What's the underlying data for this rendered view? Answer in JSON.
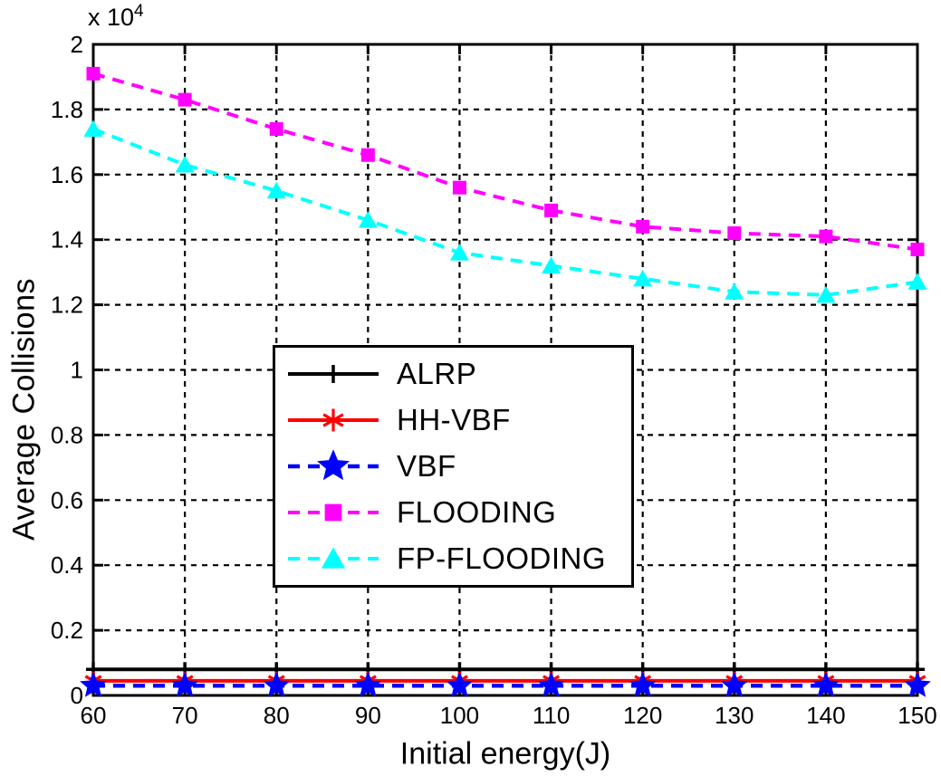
{
  "figure": {
    "background": "#ffffff",
    "text_color": "#000000"
  },
  "chart_data": {
    "type": "line",
    "title": "",
    "xlabel": "Initial energy(J)",
    "ylabel": "Average Collisions",
    "y_multiplier_base": "x 10",
    "y_multiplier_exp": "4",
    "xlim": [
      60,
      150
    ],
    "ylim": [
      0,
      20000
    ],
    "x_ticks": [
      60,
      70,
      80,
      90,
      100,
      110,
      120,
      130,
      140,
      150
    ],
    "x_tick_labels": [
      "60",
      "70",
      "80",
      "90",
      "100",
      "110",
      "120",
      "130",
      "140",
      "150"
    ],
    "y_ticks": [
      0,
      2000,
      4000,
      6000,
      8000,
      10000,
      12000,
      14000,
      16000,
      18000,
      20000
    ],
    "y_tick_labels": [
      "0",
      "0.2",
      "0.4",
      "0.6",
      "0.8",
      "1",
      "1.2",
      "1.4",
      "1.6",
      "1.8",
      "2"
    ],
    "grid": "dashed",
    "grid_color": "#000000",
    "axis_color": "#000000",
    "legend_position": "inside upper-left-center",
    "x": [
      60,
      70,
      80,
      90,
      100,
      110,
      120,
      130,
      140,
      150
    ],
    "series": [
      {
        "name": "ALRP",
        "color": "#000000",
        "line": "solid",
        "marker": "plus",
        "marker_size": 8,
        "line_width": 4,
        "values": [
          800,
          800,
          800,
          800,
          800,
          800,
          800,
          800,
          800,
          800
        ]
      },
      {
        "name": "HH-VBF",
        "color": "#ff0000",
        "line": "solid",
        "marker": "asterisk",
        "marker_size": 10,
        "line_width": 4,
        "values": [
          450,
          450,
          450,
          450,
          450,
          450,
          450,
          450,
          450,
          450
        ]
      },
      {
        "name": "VBF",
        "color": "#0000ff",
        "line": "dashed",
        "marker": "star",
        "marker_size": 13,
        "line_width": 4.5,
        "values": [
          300,
          300,
          300,
          300,
          300,
          300,
          300,
          300,
          300,
          300
        ]
      },
      {
        "name": "FLOODING",
        "color": "#ff00ff",
        "line": "dashed",
        "marker": "square",
        "marker_size": 7.5,
        "line_width": 4,
        "values": [
          19100,
          18300,
          17400,
          16600,
          15600,
          14900,
          14400,
          14200,
          14100,
          13700
        ]
      },
      {
        "name": "FP-FLOODING",
        "color": "#00ffff",
        "line": "dashed",
        "marker": "triangle",
        "marker_size": 10,
        "line_width": 4,
        "values": [
          17400,
          16300,
          15500,
          14600,
          13600,
          13200,
          12800,
          12400,
          12300,
          12700
        ]
      }
    ]
  }
}
